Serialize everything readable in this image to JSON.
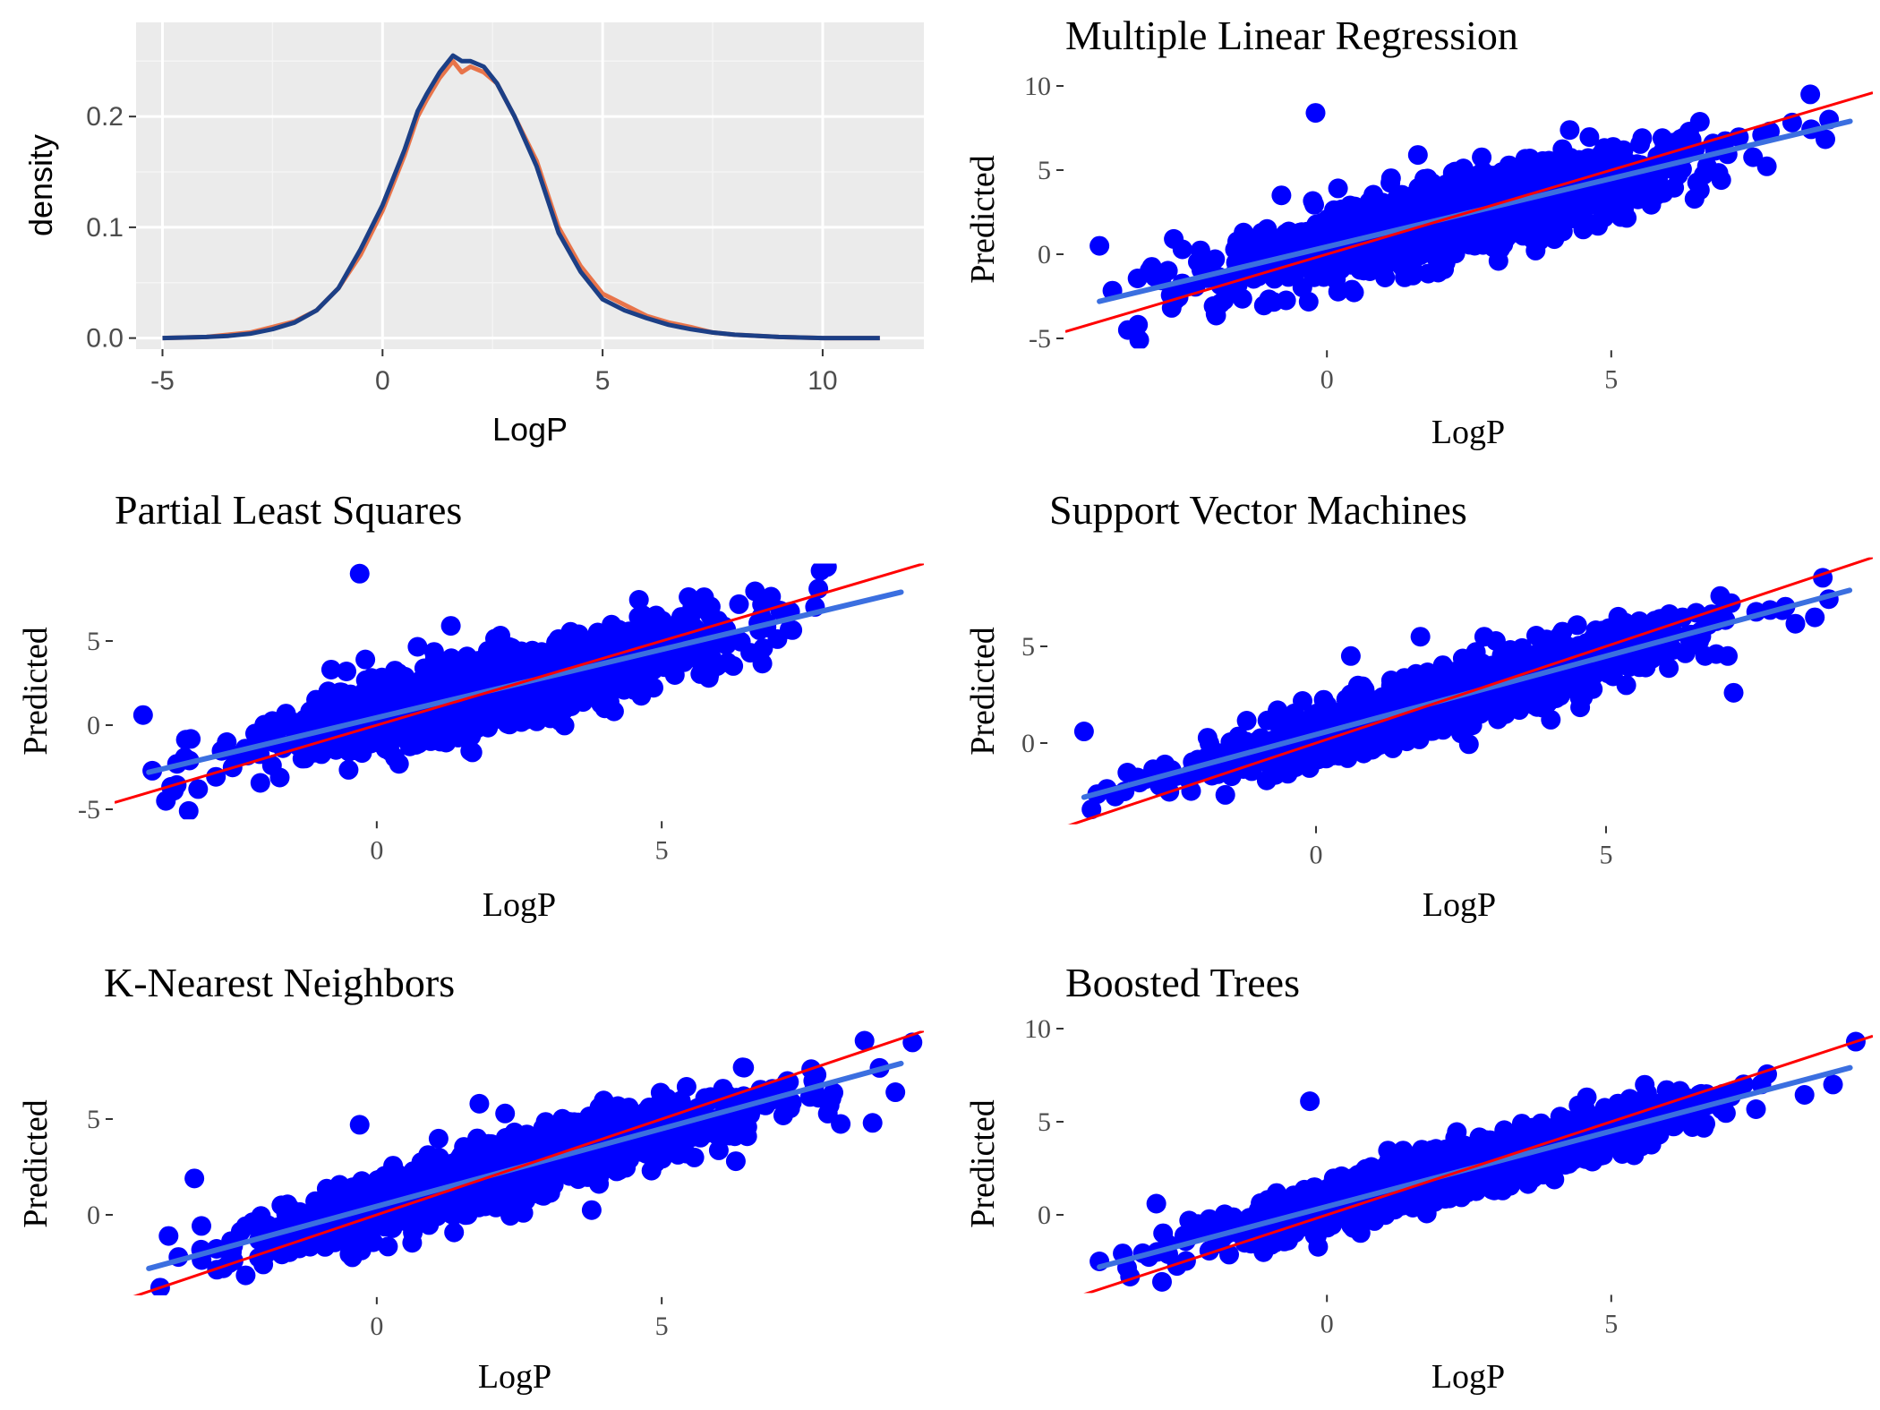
{
  "chart_data": [
    {
      "type": "line",
      "title": "",
      "xlabel": "LogP",
      "ylabel": "density",
      "xlim": [
        -5.6,
        12.3
      ],
      "ylim": [
        -0.01,
        0.285
      ],
      "x_ticks": [
        "-5",
        "0",
        "5",
        "10"
      ],
      "y_ticks": [
        "0.0",
        "0.1",
        "0.2"
      ],
      "grid": true,
      "background": "#ebebeb",
      "series": [
        {
          "color": "#e8744a",
          "x": [
            -5,
            -4,
            -3.5,
            -3,
            -2.5,
            -2,
            -1.5,
            -1,
            -0.5,
            0,
            0.5,
            0.8,
            1,
            1.3,
            1.6,
            1.8,
            2,
            2.3,
            2.6,
            3,
            3.5,
            4,
            4.5,
            5,
            5.5,
            6,
            6.5,
            7,
            7.5,
            8,
            9,
            10,
            11.3
          ],
          "values": [
            0.0,
            0.001,
            0.003,
            0.005,
            0.01,
            0.015,
            0.025,
            0.045,
            0.075,
            0.115,
            0.165,
            0.2,
            0.215,
            0.235,
            0.25,
            0.24,
            0.245,
            0.24,
            0.23,
            0.2,
            0.16,
            0.1,
            0.065,
            0.04,
            0.03,
            0.02,
            0.014,
            0.01,
            0.005,
            0.003,
            0.001,
            0.0,
            0.0
          ]
        },
        {
          "color": "#1c3f86",
          "x": [
            -5,
            -4,
            -3.5,
            -3,
            -2.5,
            -2,
            -1.5,
            -1,
            -0.5,
            0,
            0.5,
            0.8,
            1,
            1.3,
            1.6,
            1.8,
            2,
            2.3,
            2.6,
            3,
            3.5,
            4,
            4.5,
            5,
            5.5,
            6,
            6.5,
            7,
            7.5,
            8,
            9,
            10,
            11.3
          ],
          "values": [
            0.0,
            0.001,
            0.002,
            0.004,
            0.008,
            0.014,
            0.025,
            0.045,
            0.08,
            0.12,
            0.17,
            0.205,
            0.22,
            0.24,
            0.255,
            0.25,
            0.25,
            0.245,
            0.23,
            0.2,
            0.155,
            0.095,
            0.06,
            0.035,
            0.025,
            0.018,
            0.012,
            0.008,
            0.005,
            0.003,
            0.001,
            0.0,
            0.0
          ]
        }
      ]
    },
    {
      "type": "scatter",
      "title": "Multiple Linear Regression",
      "xlabel": "LogP",
      "ylabel": "Predicted",
      "xlim": [
        -4.6,
        9.6
      ],
      "ylim": [
        -6,
        10.8
      ],
      "x_ticks": [
        "0",
        "5"
      ],
      "y_ticks": [
        "-5",
        "0",
        "5",
        "10"
      ],
      "identity_line": {
        "color": "#ff0000"
      },
      "fit_line": {
        "color": "#3b6fe0",
        "x": [
          -4,
          9.2
        ],
        "y": [
          -2.8,
          7.9
        ]
      },
      "point_color": "#0000ff",
      "points": [
        [
          -3.5,
          -4.5
        ],
        [
          -3.3,
          -5.1
        ],
        [
          -0.2,
          8.4
        ],
        [
          1.6,
          5.9
        ],
        [
          2.4,
          5.1
        ],
        [
          -0.8,
          3.5
        ],
        [
          8.5,
          9.5
        ],
        [
          4.0,
          0.9
        ],
        [
          -4.0,
          0.5
        ]
      ]
    },
    {
      "type": "scatter",
      "title": "Partial Least Squares",
      "xlabel": "LogP",
      "ylabel": "Predicted",
      "xlim": [
        -4.6,
        9.6
      ],
      "ylim": [
        -6,
        10.8
      ],
      "x_ticks": [
        "0",
        "5"
      ],
      "y_ticks": [
        "-5",
        "0",
        "5"
      ],
      "identity_line": {
        "color": "#ff0000"
      },
      "fit_line": {
        "color": "#3b6fe0",
        "x": [
          -4,
          9.2
        ],
        "y": [
          -2.8,
          7.9
        ]
      },
      "point_color": "#0000ff",
      "points": [
        [
          -3.7,
          -4.5
        ],
        [
          -3.3,
          -5.1
        ],
        [
          -0.3,
          9.0
        ],
        [
          1.3,
          5.9
        ],
        [
          -0.2,
          3.9
        ],
        [
          -0.8,
          3.3
        ],
        [
          7.9,
          9.4
        ],
        [
          4.0,
          1.0
        ],
        [
          -4.1,
          0.6
        ]
      ]
    },
    {
      "type": "scatter",
      "title": "Support Vector Machines",
      "xlabel": "LogP",
      "ylabel": "Predicted",
      "xlim": [
        -4.6,
        9.6
      ],
      "ylim": [
        -6,
        10.8
      ],
      "x_ticks": [
        "0",
        "5"
      ],
      "y_ticks": [
        "0",
        "5"
      ],
      "identity_line": {
        "color": "#ff0000"
      },
      "fit_line": {
        "color": "#3b6fe0",
        "x": [
          -4,
          9.2
        ],
        "y": [
          -2.8,
          7.9
        ]
      },
      "point_color": "#0000ff",
      "points": [
        [
          -4.0,
          0.6
        ],
        [
          -3.3,
          -2.5
        ],
        [
          1.8,
          5.5
        ],
        [
          2.9,
          5.5
        ],
        [
          0.6,
          4.5
        ],
        [
          7.1,
          4.5
        ],
        [
          7.2,
          2.6
        ],
        [
          6.9,
          4.6
        ],
        [
          8.6,
          6.5
        ]
      ]
    },
    {
      "type": "scatter",
      "title": "K-Nearest Neighbors",
      "xlabel": "LogP",
      "ylabel": "Predicted",
      "xlim": [
        -4.6,
        9.6
      ],
      "ylim": [
        -6,
        10.8
      ],
      "x_ticks": [
        "0",
        "5"
      ],
      "y_ticks": [
        "0",
        "5"
      ],
      "identity_line": {
        "color": "#ff0000"
      },
      "fit_line": {
        "color": "#3b6fe0",
        "x": [
          -4,
          9.2
        ],
        "y": [
          -2.8,
          7.9
        ]
      },
      "point_color": "#0000ff",
      "points": [
        [
          -3.8,
          -3.8
        ],
        [
          -3.2,
          1.9
        ],
        [
          -0.3,
          4.7
        ],
        [
          1.8,
          5.8
        ],
        [
          6.5,
          4.1
        ],
        [
          8.7,
          4.8
        ],
        [
          9.1,
          6.4
        ],
        [
          9.4,
          9.0
        ],
        [
          6.3,
          2.8
        ]
      ]
    },
    {
      "type": "scatter",
      "title": "Boosted Trees",
      "xlabel": "LogP",
      "ylabel": "Predicted",
      "xlim": [
        -4.6,
        9.6
      ],
      "ylim": [
        -6,
        10.8
      ],
      "x_ticks": [
        "0",
        "5"
      ],
      "y_ticks": [
        "0",
        "5",
        "10"
      ],
      "identity_line": {
        "color": "#ff0000"
      },
      "fit_line": {
        "color": "#3b6fe0",
        "x": [
          -4,
          9.2
        ],
        "y": [
          -2.8,
          7.9
        ]
      },
      "point_color": "#0000ff",
      "points": [
        [
          -4.0,
          -2.5
        ],
        [
          -2.9,
          -3.6
        ],
        [
          -0.3,
          6.1
        ],
        [
          1.7,
          3.2
        ],
        [
          4.0,
          1.9
        ],
        [
          6.3,
          6.2
        ],
        [
          8.9,
          7.0
        ],
        [
          9.3,
          9.3
        ],
        [
          -3.0,
          0.6
        ]
      ]
    }
  ]
}
